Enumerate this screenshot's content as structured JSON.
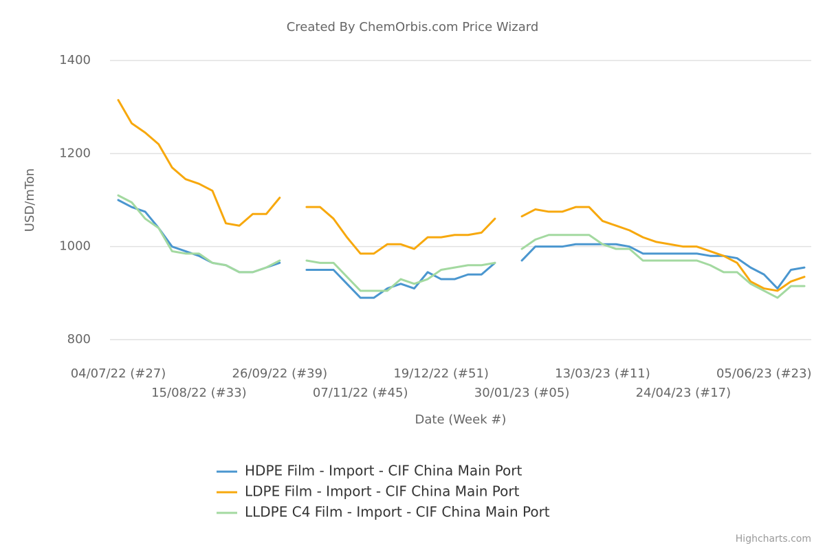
{
  "chart_data": {
    "type": "line",
    "title": "Created By ChemOrbis.com Price Wizard",
    "y_label": "USD/mTon",
    "x_label": "Date (Week #)",
    "credit": "Highcharts.com",
    "legend": "bottom",
    "grid": true,
    "ylim": [
      800,
      1400
    ],
    "yticks": [
      800,
      1000,
      1200,
      1400
    ],
    "categories": [
      "04/07/22 (#27)",
      null,
      null,
      null,
      null,
      null,
      "15/08/22 (#33)",
      null,
      null,
      null,
      null,
      null,
      "26/09/22 (#39)",
      null,
      null,
      null,
      null,
      null,
      "07/11/22 (#45)",
      null,
      null,
      null,
      null,
      null,
      "19/12/22 (#51)",
      null,
      null,
      null,
      null,
      null,
      "30/01/23 (#05)",
      null,
      null,
      null,
      null,
      null,
      "13/03/23 (#11)",
      null,
      null,
      null,
      null,
      null,
      "24/04/23 (#17)",
      null,
      null,
      null,
      null,
      null,
      "05/06/23 (#23)",
      null,
      null,
      null
    ],
    "series": [
      {
        "name": "HDPE Film - Import - CIF China Main Port",
        "color": "#4a96cf",
        "values": [
          1100,
          1085,
          1075,
          1040,
          1000,
          990,
          980,
          965,
          960,
          945,
          945,
          955,
          965,
          null,
          950,
          950,
          950,
          920,
          890,
          890,
          910,
          920,
          910,
          945,
          930,
          930,
          940,
          940,
          965,
          null,
          970,
          1000,
          1000,
          1000,
          1005,
          1005,
          1005,
          1005,
          1000,
          985,
          985,
          985,
          985,
          985,
          980,
          980,
          975,
          955,
          940,
          910,
          950,
          955
        ]
      },
      {
        "name": "LDPE Film - Import - CIF China Main Port",
        "color": "#f7a80d",
        "values": [
          1315,
          1265,
          1245,
          1220,
          1170,
          1145,
          1135,
          1120,
          1050,
          1045,
          1070,
          1070,
          1105,
          null,
          1085,
          1085,
          1060,
          1020,
          985,
          985,
          1005,
          1005,
          995,
          1020,
          1020,
          1025,
          1025,
          1030,
          1060,
          null,
          1065,
          1080,
          1075,
          1075,
          1085,
          1085,
          1055,
          1045,
          1035,
          1020,
          1010,
          1005,
          1000,
          1000,
          990,
          980,
          965,
          925,
          910,
          905,
          925,
          935
        ]
      },
      {
        "name": "LLDPE C4 Film - Import - CIF China Main Port",
        "color": "#a3d9a0",
        "values": [
          1110,
          1095,
          1060,
          1040,
          990,
          985,
          985,
          965,
          960,
          945,
          945,
          955,
          970,
          null,
          970,
          965,
          965,
          935,
          905,
          905,
          905,
          930,
          920,
          930,
          950,
          955,
          960,
          960,
          965,
          null,
          995,
          1015,
          1025,
          1025,
          1025,
          1025,
          1005,
          995,
          995,
          970,
          970,
          970,
          970,
          970,
          960,
          945,
          945,
          920,
          905,
          890,
          915,
          915
        ]
      }
    ]
  }
}
